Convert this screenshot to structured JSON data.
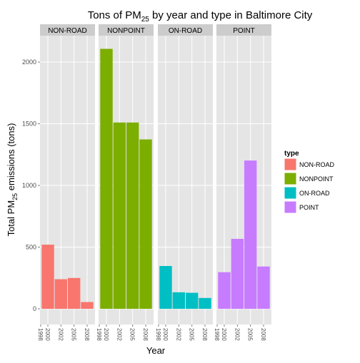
{
  "chart_data": {
    "type": "faceted-bar",
    "title": [
      "Tons of PM",
      "25",
      " by year and type in Baltimore City"
    ],
    "x_label": "Year",
    "y_label": [
      "Total PM",
      "25",
      " emissions (tons)"
    ],
    "legend_title": "type",
    "categories": [
      "1998",
      "2000",
      "2002",
      "2005",
      "2008"
    ],
    "series": [
      {
        "name": "NON-ROAD",
        "color": "#F8766D",
        "values": [
          null,
          520,
          240,
          250,
          55
        ]
      },
      {
        "name": "NONPOINT",
        "color": "#7CAE00",
        "values": [
          null,
          2107,
          1510,
          1510,
          1373
        ]
      },
      {
        "name": "ON-ROAD",
        "color": "#00BFC4",
        "values": [
          null,
          347,
          134,
          130,
          88
        ]
      },
      {
        "name": "POINT",
        "color": "#C77CFF",
        "values": [
          null,
          297,
          567,
          1202,
          343
        ]
      }
    ],
    "ylim": [
      -127,
      2214
    ],
    "yticks": [
      0,
      500,
      1000,
      1500,
      2000
    ],
    "grid": true
  }
}
